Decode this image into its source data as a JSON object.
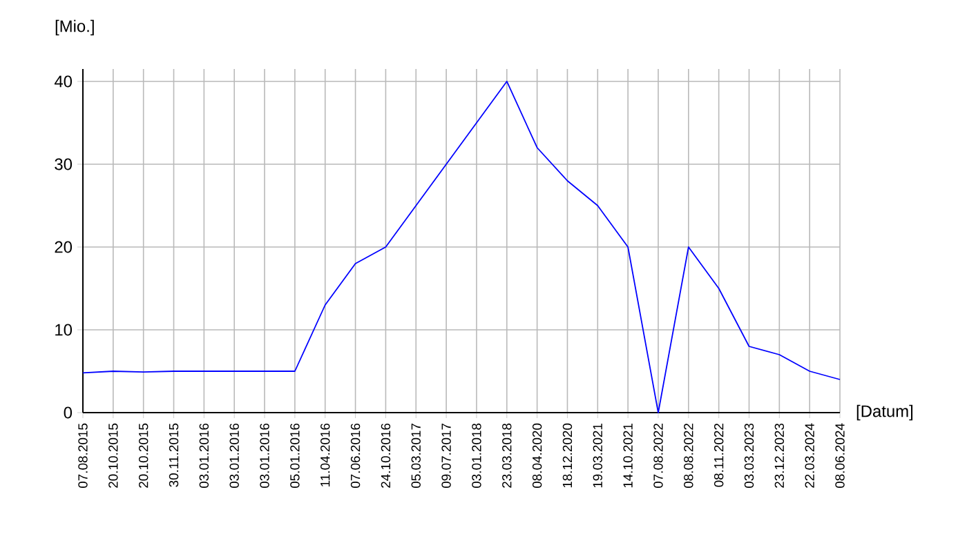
{
  "chart_data": {
    "type": "line",
    "ylabel": "[Mio.]",
    "xlabel": "[Datum]",
    "categories": [
      "07.08.2015",
      "20.10.2015",
      "20.10.2015",
      "30.11.2015",
      "03.01.2016",
      "03.01.2016",
      "03.01.2016",
      "05.01.2016",
      "11.04.2016",
      "07.06.2016",
      "24.10.2016",
      "05.03.2017",
      "09.07.2017",
      "03.01.2018",
      "23.03.2018",
      "08.04.2020",
      "18.12.2020",
      "19.03.2021",
      "14.10.2021",
      "07.08.2022",
      "08.08.2022",
      "08.11.2022",
      "03.03.2023",
      "23.12.2023",
      "22.03.2024",
      "08.06.2024"
    ],
    "values": [
      4.8,
      5,
      4.9,
      5,
      5,
      5,
      5,
      5,
      13,
      18,
      20,
      25,
      30,
      35,
      40,
      32,
      28,
      25,
      20,
      0,
      20,
      15,
      8,
      7,
      5,
      4
    ],
    "color": "#0000ff",
    "ylim": [
      0,
      41.5
    ],
    "yticks": [
      0,
      10,
      20,
      30,
      40
    ],
    "grid": true,
    "marker": "none",
    "line_style": "solid"
  }
}
